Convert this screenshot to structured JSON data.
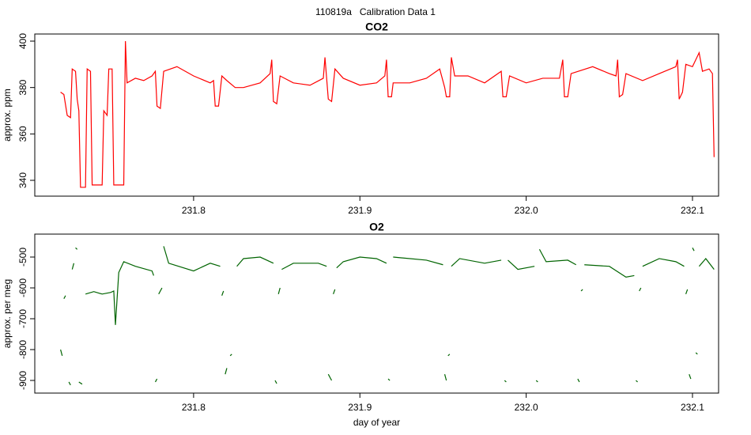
{
  "title": "110819a   Calibration Data 1",
  "chart_data": [
    {
      "type": "line",
      "title": "CO2",
      "ylabel": "approx. ppm",
      "x": [
        231.72,
        231.722,
        231.724,
        231.726,
        231.727,
        231.729,
        231.73,
        231.731,
        231.732,
        231.735,
        231.736,
        231.738,
        231.739,
        231.745,
        231.746,
        231.748,
        231.749,
        231.751,
        231.752,
        231.758,
        231.759,
        231.76,
        231.765,
        231.77,
        231.775,
        231.777,
        231.778,
        231.78,
        231.782,
        231.79,
        231.8,
        231.81,
        231.812,
        231.813,
        231.815,
        231.817,
        231.82,
        231.825,
        231.83,
        231.84,
        231.846,
        231.847,
        231.848,
        231.85,
        231.852,
        231.86,
        231.87,
        231.878,
        231.879,
        231.881,
        231.883,
        231.885,
        231.89,
        231.9,
        231.91,
        231.915,
        231.916,
        231.917,
        231.919,
        231.92,
        231.93,
        231.94,
        231.948,
        231.951,
        231.952,
        231.954,
        231.955,
        231.957,
        231.965,
        231.975,
        231.985,
        231.986,
        231.988,
        231.99,
        232.0,
        232.01,
        232.02,
        232.022,
        232.023,
        232.025,
        232.027,
        232.04,
        232.05,
        232.054,
        232.055,
        232.056,
        232.058,
        232.06,
        232.07,
        232.08,
        232.09,
        232.091,
        232.092,
        232.094,
        232.096,
        232.1,
        232.104,
        232.106,
        232.11,
        232.112,
        232.113
      ],
      "series": [
        {
          "color": "#ff0000",
          "values": [
            378,
            377,
            368,
            367,
            388,
            387,
            375,
            370,
            337,
            337,
            388,
            387,
            338,
            338,
            370,
            368,
            388,
            388,
            338,
            338,
            400,
            382,
            384,
            383,
            385,
            387,
            372,
            371,
            387,
            389,
            385,
            382,
            383,
            372,
            372,
            385,
            383,
            380,
            380,
            382,
            386,
            392,
            374,
            373,
            385,
            382,
            381,
            384,
            393,
            375,
            374,
            388,
            384,
            381,
            382,
            385,
            392,
            376,
            376,
            382,
            382,
            384,
            388,
            380,
            376,
            376,
            393,
            385,
            385,
            382,
            387,
            376,
            376,
            385,
            382,
            384,
            384,
            392,
            376,
            376,
            386,
            389,
            386,
            385,
            392,
            376,
            377,
            386,
            383,
            386,
            389,
            392,
            375,
            378,
            390,
            389,
            395,
            387,
            388,
            386,
            350
          ]
        }
      ],
      "xlim": [
        231.7045,
        232.1157
      ],
      "ylim": [
        333.18,
        403.07
      ],
      "xticks": [
        231.8,
        231.9,
        {
          "value": 232.0,
          "label": "232.0"
        },
        232.1
      ],
      "yticks": [
        340,
        360,
        380,
        400
      ]
    },
    {
      "type": "line",
      "title": "O2",
      "ylabel": "approx. per meg",
      "xlabel": "day of year",
      "x": [
        231.72,
        231.721,
        231.7215,
        231.722,
        231.723,
        231.7235,
        231.725,
        231.726,
        231.7265,
        231.727,
        231.728,
        231.7285,
        231.729,
        231.73,
        231.7305,
        231.731,
        231.733,
        231.734,
        231.735,
        231.74,
        231.745,
        231.75,
        231.752,
        231.753,
        231.755,
        231.758,
        231.765,
        231.775,
        231.776,
        231.7765,
        231.777,
        231.778,
        231.7785,
        231.779,
        231.781,
        231.7815,
        231.782,
        231.785,
        231.8,
        231.81,
        231.816,
        231.8165,
        231.817,
        231.818,
        231.8185,
        231.819,
        231.82,
        231.821,
        231.822,
        231.823,
        231.824,
        231.826,
        231.83,
        231.84,
        231.848,
        231.8485,
        231.849,
        231.85,
        231.8505,
        231.851,
        231.852,
        231.8525,
        231.853,
        231.86,
        231.875,
        231.88,
        231.8805,
        231.881,
        231.883,
        231.8835,
        231.884,
        231.885,
        231.8855,
        231.886,
        231.89,
        231.9,
        231.91,
        231.916,
        231.9165,
        231.917,
        231.918,
        231.919,
        231.92,
        231.94,
        231.95,
        231.9505,
        231.951,
        231.952,
        231.9525,
        231.953,
        231.954,
        231.9545,
        231.955,
        231.96,
        231.975,
        231.985,
        231.986,
        231.987,
        231.988,
        231.9885,
        231.989,
        231.995,
        232.005,
        232.0055,
        232.006,
        232.007,
        232.0075,
        232.008,
        232.012,
        232.025,
        232.03,
        232.0305,
        232.031,
        232.032,
        232.0325,
        232.033,
        232.034,
        232.0345,
        232.035,
        232.05,
        232.06,
        232.065,
        232.0655,
        232.066,
        232.067,
        232.0675,
        232.068,
        232.069,
        232.0695,
        232.07,
        232.08,
        232.09,
        232.095,
        232.0955,
        232.096,
        232.097,
        232.0975,
        232.098,
        232.099,
        232.0995,
        232.1,
        232.101,
        232.1015,
        232.102,
        232.103,
        232.1035,
        232.104,
        232.108,
        232.113
      ],
      "series": [
        {
          "color": "#006400",
          "values": [
            -800,
            -820,
            null,
            -635,
            -625,
            null,
            -905,
            -915,
            null,
            -540,
            -520,
            null,
            -470,
            -475,
            null,
            -905,
            -912,
            null,
            -620,
            -612,
            -620,
            -615,
            -610,
            -720,
            -550,
            -515,
            -530,
            -545,
            -560,
            null,
            -905,
            -895,
            null,
            -620,
            -600,
            null,
            -465,
            -520,
            -545,
            -520,
            -530,
            null,
            -625,
            -610,
            null,
            -880,
            -860,
            null,
            -820,
            -815,
            null,
            -530,
            -505,
            -500,
            -520,
            null,
            -900,
            -910,
            null,
            -620,
            -600,
            null,
            -540,
            -520,
            -520,
            -530,
            null,
            -880,
            -900,
            null,
            -620,
            -605,
            null,
            -535,
            -515,
            -500,
            -505,
            -520,
            null,
            -895,
            -900,
            null,
            -500,
            -510,
            -525,
            null,
            -880,
            -900,
            null,
            -820,
            -815,
            null,
            -530,
            -505,
            -520,
            -510,
            null,
            -900,
            -905,
            null,
            -510,
            -540,
            -530,
            null,
            -900,
            -905,
            null,
            -475,
            -515,
            -510,
            -525,
            null,
            -895,
            -905,
            null,
            -610,
            -605,
            null,
            -525,
            -530,
            -565,
            -560,
            null,
            -900,
            -905,
            null,
            -610,
            -600,
            null,
            -530,
            -505,
            -515,
            -530,
            null,
            -620,
            -605,
            null,
            -880,
            -895,
            null,
            -470,
            -480,
            null,
            -810,
            -815,
            null,
            -530,
            -505,
            -540
          ]
        }
      ],
      "xlim": [
        231.7045,
        232.1157
      ],
      "ylim": [
        -941,
        -425.6
      ],
      "xticks": [
        231.8,
        231.9,
        {
          "value": 232.0,
          "label": "232.0"
        },
        232.1
      ],
      "yticks": [
        -900,
        -800,
        -700,
        -600,
        -500
      ]
    }
  ]
}
